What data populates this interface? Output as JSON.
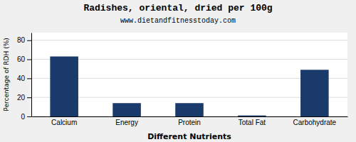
{
  "chart_data": {
    "type": "bar",
    "title": "Radishes, oriental, dried per 100g",
    "subtitle": "www.dietandfitnesstoday.com",
    "xlabel": "Different Nutrients",
    "ylabel": "Percentage of RDH (%)",
    "categories": [
      "Calcium",
      "Energy",
      "Protein",
      "Total Fat",
      "Carbohydrate"
    ],
    "values": [
      63,
      14,
      14,
      1,
      49
    ],
    "color": "#1a3a6b",
    "ylim": [
      0,
      88
    ],
    "yticks": [
      0,
      20,
      40,
      60,
      80
    ],
    "grid": true
  }
}
